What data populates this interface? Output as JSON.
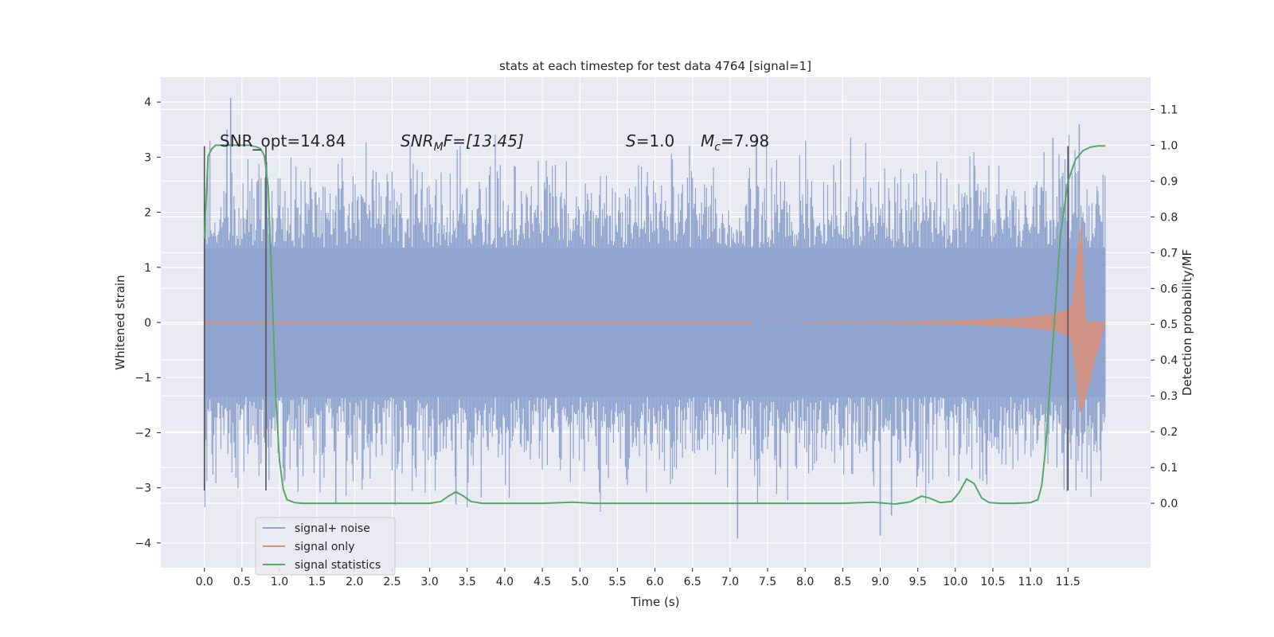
{
  "chart_data": {
    "type": "line",
    "title": "stats at each timestep for test data 4764 [signal=1]",
    "xlabel": "Time (s)",
    "ylabel": "Whitened strain",
    "y2label": "Detection probability/MF",
    "xlim": [
      -0.58,
      12.6
    ],
    "ylim": [
      -4.45,
      4.45
    ],
    "y2lim": [
      -0.18,
      1.19
    ],
    "x_ticks": [
      "0.0",
      "0.5",
      "1.0",
      "1.5",
      "2.0",
      "2.5",
      "3.0",
      "3.5",
      "4.0",
      "4.5",
      "5.0",
      "5.5",
      "6.0",
      "6.5",
      "7.0",
      "7.5",
      "8.0",
      "8.5",
      "9.0",
      "9.5",
      "10.0",
      "10.5",
      "11.0",
      "11.5"
    ],
    "y_ticks": [
      "4",
      "3",
      "2",
      "1",
      "0",
      "−1",
      "−2",
      "−3",
      "−4"
    ],
    "y2_ticks": [
      "1.1",
      "1.0",
      "0.9",
      "0.8",
      "0.7",
      "0.6",
      "0.5",
      "0.4",
      "0.3",
      "0.2",
      "0.1",
      "0.0"
    ],
    "grid": true,
    "legend_position": "lower-left",
    "annotations": {
      "snr_opt": "SNR_opt=14.84",
      "snr_mf_sym": "SNR",
      "snr_mf_sub": "M",
      "snr_mf_rest": "F=[13.45]",
      "s_sym": "S",
      "s_rest": "=1.0",
      "mc_sym": "M",
      "mc_sub": "c",
      "mc_rest": "=7.98"
    },
    "vlines_x": [
      0.0,
      0.82,
      11.5
    ],
    "vline_range": [
      -3.05,
      3.2
    ],
    "series": [
      {
        "name": "signal+ noise",
        "color": "#8fa4cf",
        "x_range": [
          0.0,
          12.0
        ],
        "core_amplitude": 1.35,
        "peaks": [
          [
            0.35,
            4.08
          ],
          [
            0.3,
            3.5
          ],
          [
            7.35,
            3.35
          ],
          [
            11.65,
            3.6
          ],
          [
            11.3,
            3.35
          ]
        ],
        "troughs": [
          [
            7.1,
            -3.92
          ],
          [
            9.0,
            -3.87
          ],
          [
            3.35,
            -3.3
          ],
          [
            1.75,
            -3.3
          ],
          [
            9.15,
            -3.5
          ]
        ]
      },
      {
        "name": "signal only",
        "color": "#dd8f74",
        "x_range": [
          0.0,
          12.0
        ],
        "chirp_start": 7.3,
        "chirp_peak_x": 11.68,
        "chirp_peak_y": 1.85
      },
      {
        "name": "signal statistics",
        "color": "#55a868",
        "axis": "right",
        "x": [
          0.0,
          0.05,
          0.1,
          0.15,
          0.2,
          0.3,
          0.4,
          0.5,
          0.6,
          0.7,
          0.75,
          0.8,
          0.85,
          0.9,
          0.95,
          1.0,
          1.05,
          1.1,
          1.2,
          1.3,
          1.5,
          2.0,
          2.5,
          3.0,
          3.15,
          3.25,
          3.35,
          3.45,
          3.55,
          3.7,
          4.0,
          4.5,
          4.9,
          5.2,
          6.0,
          6.8,
          7.5,
          8.5,
          8.9,
          9.2,
          9.4,
          9.55,
          9.65,
          9.8,
          9.95,
          10.05,
          10.15,
          10.25,
          10.35,
          10.45,
          10.6,
          10.8,
          11.0,
          11.1,
          11.15,
          11.2,
          11.3,
          11.4,
          11.5,
          11.6,
          11.7,
          11.8,
          11.9,
          12.0
        ],
        "y": [
          0.74,
          0.97,
          0.99,
          1.0,
          1.0,
          1.0,
          1.0,
          1.0,
          1.0,
          0.995,
          0.99,
          0.97,
          0.88,
          0.6,
          0.3,
          0.12,
          0.04,
          0.01,
          0.002,
          0.0,
          0.0,
          0.0,
          0.0,
          0.0,
          0.005,
          0.02,
          0.032,
          0.02,
          0.005,
          0.0,
          0.0,
          0.0,
          0.003,
          0.0,
          0.0,
          0.0,
          0.0,
          0.0,
          0.003,
          -0.002,
          0.004,
          0.02,
          0.015,
          0.002,
          0.005,
          0.03,
          0.068,
          0.055,
          0.015,
          0.002,
          0.0,
          0.0,
          0.002,
          0.01,
          0.05,
          0.15,
          0.45,
          0.75,
          0.9,
          0.96,
          0.985,
          0.995,
          0.998,
          0.998
        ]
      }
    ]
  }
}
